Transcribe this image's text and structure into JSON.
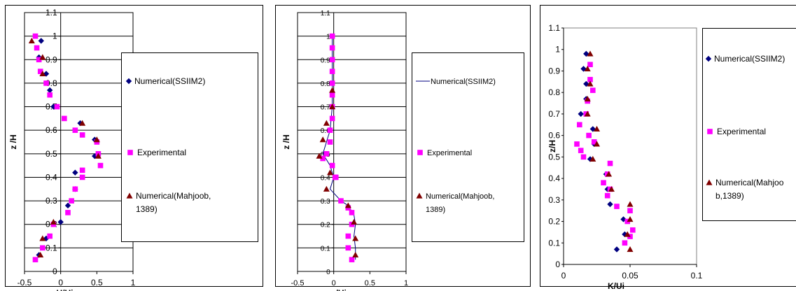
{
  "colors": {
    "numerical_ssiim2": "#000080",
    "experimental": "#ff00ff",
    "numerical_mahjoob": "#800000",
    "grid": "#000000",
    "frame": "#000000"
  },
  "chart_data": [
    {
      "type": "scatter",
      "title": "",
      "xlabel": "U/Ui",
      "ylabel": "z /H",
      "xlim": [
        -0.5,
        1
      ],
      "ylim": [
        0,
        1.1
      ],
      "x_ticks": [
        "-0.5",
        "0",
        "0.5",
        "1"
      ],
      "y_ticks": [
        "0",
        "0.1",
        "0.2",
        "0.3",
        "0.4",
        "0.5",
        "0.6",
        "0.7",
        "0.8",
        "0.9",
        "1",
        "1.1"
      ],
      "grid": true,
      "legend_position": "right",
      "legend": [
        "Numerical(SSIIM2)",
        "Experimental",
        "Numerical(Mahjoob,",
        "1389)"
      ],
      "series": [
        {
          "name": "Numerical(SSIIM2)",
          "marker": "diamond",
          "points": [
            [
              -0.27,
              0.98
            ],
            [
              -0.3,
              0.91
            ],
            [
              -0.2,
              0.84
            ],
            [
              -0.15,
              0.77
            ],
            [
              -0.1,
              0.7
            ],
            [
              0.27,
              0.63
            ],
            [
              0.47,
              0.56
            ],
            [
              0.47,
              0.49
            ],
            [
              0.2,
              0.42
            ],
            [
              0.2,
              0.35
            ],
            [
              0.1,
              0.28
            ],
            [
              0.0,
              0.21
            ],
            [
              -0.2,
              0.14
            ],
            [
              -0.3,
              0.07
            ]
          ]
        },
        {
          "name": "Experimental",
          "marker": "square",
          "points": [
            [
              -0.35,
              1.0
            ],
            [
              -0.33,
              0.95
            ],
            [
              -0.3,
              0.9
            ],
            [
              -0.28,
              0.85
            ],
            [
              -0.2,
              0.8
            ],
            [
              -0.15,
              0.75
            ],
            [
              -0.05,
              0.7
            ],
            [
              0.05,
              0.65
            ],
            [
              0.2,
              0.6
            ],
            [
              0.3,
              0.58
            ],
            [
              0.5,
              0.55
            ],
            [
              0.52,
              0.5
            ],
            [
              0.55,
              0.45
            ],
            [
              0.3,
              0.43
            ],
            [
              0.3,
              0.4
            ],
            [
              0.2,
              0.35
            ],
            [
              0.15,
              0.3
            ],
            [
              0.1,
              0.25
            ],
            [
              -0.1,
              0.2
            ],
            [
              -0.15,
              0.15
            ],
            [
              -0.25,
              0.1
            ],
            [
              -0.35,
              0.05
            ]
          ]
        },
        {
          "name": "Numerical(Mahjoob, 1389)",
          "marker": "triangle",
          "points": [
            [
              -0.4,
              0.98
            ],
            [
              -0.25,
              0.91
            ],
            [
              -0.25,
              0.84
            ],
            [
              0.3,
              0.63
            ],
            [
              0.5,
              0.56
            ],
            [
              0.52,
              0.49
            ],
            [
              -0.1,
              0.21
            ],
            [
              -0.25,
              0.14
            ],
            [
              -0.28,
              0.07
            ]
          ]
        }
      ]
    },
    {
      "type": "scatter",
      "title": "",
      "xlabel": "w/Ui",
      "ylabel": "z /H",
      "xlim": [
        -0.5,
        1
      ],
      "ylim": [
        0,
        1.1
      ],
      "x_ticks": [
        "-0.5",
        "0",
        "0.5",
        "1"
      ],
      "y_ticks": [
        "0",
        "0.1",
        "0.2",
        "0.3",
        "0.4",
        "0.5",
        "0.6",
        "0.7",
        "0.8",
        "0.9",
        "1",
        "1.1"
      ],
      "grid": true,
      "legend_position": "right",
      "legend": [
        "Numerical(SSIIM2)",
        "Experimental",
        "Numerical(Mahjoob,",
        "1389)"
      ],
      "series": [
        {
          "name": "Numerical(SSIIM2)",
          "marker": "line",
          "points": [
            [
              -0.02,
              1.0
            ],
            [
              -0.02,
              0.9
            ],
            [
              -0.02,
              0.8
            ],
            [
              -0.02,
              0.7
            ],
            [
              -0.05,
              0.6
            ],
            [
              -0.1,
              0.55
            ],
            [
              -0.15,
              0.5
            ],
            [
              -0.05,
              0.45
            ],
            [
              0.0,
              0.4
            ],
            [
              -0.05,
              0.35
            ],
            [
              0.1,
              0.3
            ],
            [
              0.2,
              0.28
            ],
            [
              0.28,
              0.24
            ],
            [
              0.3,
              0.2
            ],
            [
              0.28,
              0.15
            ],
            [
              0.3,
              0.1
            ],
            [
              0.3,
              0.05
            ]
          ]
        },
        {
          "name": "Experimental",
          "marker": "square",
          "points": [
            [
              -0.02,
              1.0
            ],
            [
              -0.02,
              0.95
            ],
            [
              -0.02,
              0.9
            ],
            [
              -0.02,
              0.85
            ],
            [
              -0.02,
              0.8
            ],
            [
              -0.02,
              0.75
            ],
            [
              -0.02,
              0.7
            ],
            [
              -0.02,
              0.65
            ],
            [
              -0.05,
              0.6
            ],
            [
              -0.05,
              0.55
            ],
            [
              -0.1,
              0.5
            ],
            [
              -0.15,
              0.48
            ],
            [
              -0.02,
              0.45
            ],
            [
              0.02,
              0.4
            ],
            [
              0.03,
              0.4
            ],
            [
              0.1,
              0.3
            ],
            [
              0.2,
              0.27
            ],
            [
              0.25,
              0.25
            ],
            [
              0.25,
              0.2
            ],
            [
              0.2,
              0.15
            ],
            [
              0.2,
              0.1
            ],
            [
              0.25,
              0.05
            ]
          ]
        },
        {
          "name": "Numerical(Mahjoob, 1389)",
          "marker": "triangle",
          "points": [
            [
              -0.02,
              0.77
            ],
            [
              -0.02,
              0.7
            ],
            [
              -0.1,
              0.63
            ],
            [
              -0.15,
              0.56
            ],
            [
              -0.2,
              0.49
            ],
            [
              -0.05,
              0.42
            ],
            [
              -0.1,
              0.35
            ],
            [
              0.2,
              0.28
            ],
            [
              0.28,
              0.21
            ],
            [
              0.3,
              0.14
            ],
            [
              0.3,
              0.07
            ]
          ]
        }
      ]
    },
    {
      "type": "scatter",
      "title": "",
      "xlabel": "K/Ui",
      "ylabel": "z/H",
      "xlim": [
        0,
        0.1
      ],
      "ylim": [
        0,
        1.1
      ],
      "x_ticks": [
        "0",
        "0.05",
        "0.1"
      ],
      "y_ticks": [
        "0",
        "0.1",
        "0.2",
        "0.3",
        "0.4",
        "0.5",
        "0.6",
        "0.7",
        "0.8",
        "0.9",
        "1",
        "1.1"
      ],
      "grid": false,
      "legend_position": "right",
      "legend": [
        "Numerical(SSIIM2)",
        "Experimental",
        "Numerical(Mahjoo",
        "b,1389)"
      ],
      "series": [
        {
          "name": "Numerical(SSIIM2)",
          "marker": "diamond",
          "points": [
            [
              0.017,
              0.98
            ],
            [
              0.015,
              0.91
            ],
            [
              0.017,
              0.84
            ],
            [
              0.017,
              0.77
            ],
            [
              0.013,
              0.7
            ],
            [
              0.022,
              0.63
            ],
            [
              0.023,
              0.56
            ],
            [
              0.02,
              0.49
            ],
            [
              0.032,
              0.42
            ],
            [
              0.033,
              0.35
            ],
            [
              0.035,
              0.28
            ],
            [
              0.045,
              0.21
            ],
            [
              0.046,
              0.14
            ],
            [
              0.04,
              0.07
            ]
          ]
        },
        {
          "name": "Experimental",
          "marker": "square",
          "points": [
            [
              0.02,
              0.93
            ],
            [
              0.02,
              0.86
            ],
            [
              0.022,
              0.81
            ],
            [
              0.018,
              0.76
            ],
            [
              0.017,
              0.7
            ],
            [
              0.012,
              0.65
            ],
            [
              0.019,
              0.6
            ],
            [
              0.023,
              0.57
            ],
            [
              0.01,
              0.56
            ],
            [
              0.013,
              0.53
            ],
            [
              0.015,
              0.5
            ],
            [
              0.035,
              0.47
            ],
            [
              0.033,
              0.42
            ],
            [
              0.03,
              0.38
            ],
            [
              0.035,
              0.35
            ],
            [
              0.033,
              0.32
            ],
            [
              0.04,
              0.27
            ],
            [
              0.05,
              0.25
            ],
            [
              0.048,
              0.2
            ],
            [
              0.052,
              0.16
            ],
            [
              0.05,
              0.13
            ],
            [
              0.046,
              0.1
            ]
          ]
        },
        {
          "name": "Numerical(Mahjoob, 1389)",
          "marker": "triangle",
          "points": [
            [
              0.02,
              0.98
            ],
            [
              0.018,
              0.91
            ],
            [
              0.02,
              0.84
            ],
            [
              0.018,
              0.77
            ],
            [
              0.018,
              0.7
            ],
            [
              0.025,
              0.63
            ],
            [
              0.025,
              0.56
            ],
            [
              0.022,
              0.49
            ],
            [
              0.034,
              0.42
            ],
            [
              0.036,
              0.35
            ],
            [
              0.05,
              0.28
            ],
            [
              0.05,
              0.21
            ],
            [
              0.048,
              0.14
            ],
            [
              0.05,
              0.07
            ]
          ]
        }
      ]
    }
  ]
}
